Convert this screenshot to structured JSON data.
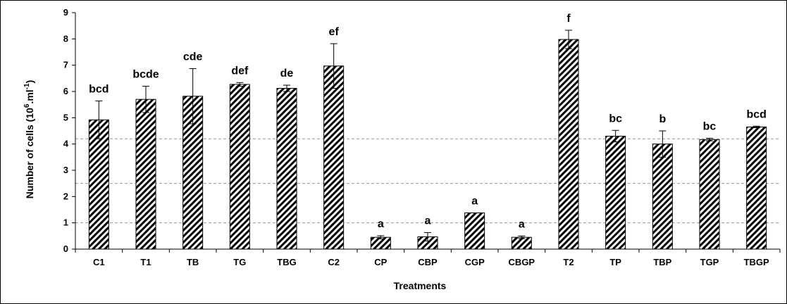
{
  "chart_data": {
    "type": "bar",
    "xlabel": "Treatments",
    "ylabel_main": "Number of cells (10",
    "ylabel_sup1": "6",
    "ylabel_mid": ".ml",
    "ylabel_sup2": "-1",
    "ylabel_end": ")",
    "ylim": [
      0,
      9
    ],
    "yticks": [
      "0",
      "1",
      "2",
      "3",
      "4",
      "5",
      "6",
      "7",
      "8",
      "9"
    ],
    "categories": [
      "C1",
      "T1",
      "TB",
      "TG",
      "TBG",
      "C2",
      "CP",
      "CBP",
      "CGP",
      "CBGP",
      "T2",
      "TP",
      "TBP",
      "TGP",
      "TBGP"
    ],
    "values": [
      4.92,
      5.7,
      5.82,
      6.27,
      6.12,
      6.97,
      0.45,
      0.47,
      1.38,
      0.45,
      7.98,
      4.3,
      4.0,
      4.17,
      4.65
    ],
    "errors": [
      0.72,
      0.5,
      1.05,
      0.07,
      0.12,
      0.85,
      0.06,
      0.16,
      0.0,
      0.05,
      0.35,
      0.22,
      0.5,
      0.05,
      0.03
    ],
    "significance": [
      "bcd",
      "bcde",
      "cde",
      "def",
      "de",
      "ef",
      "a",
      "a",
      "a",
      "a",
      "f",
      "bc",
      "b",
      "bc",
      "bcd"
    ],
    "grid": "dashed horizontal at 1, 2.5, 4.2",
    "bar_pattern": "diagonal-hatch",
    "colors": {
      "bar_fill": "#ffffff",
      "hatch": "#000000",
      "axis": "#000000"
    }
  }
}
